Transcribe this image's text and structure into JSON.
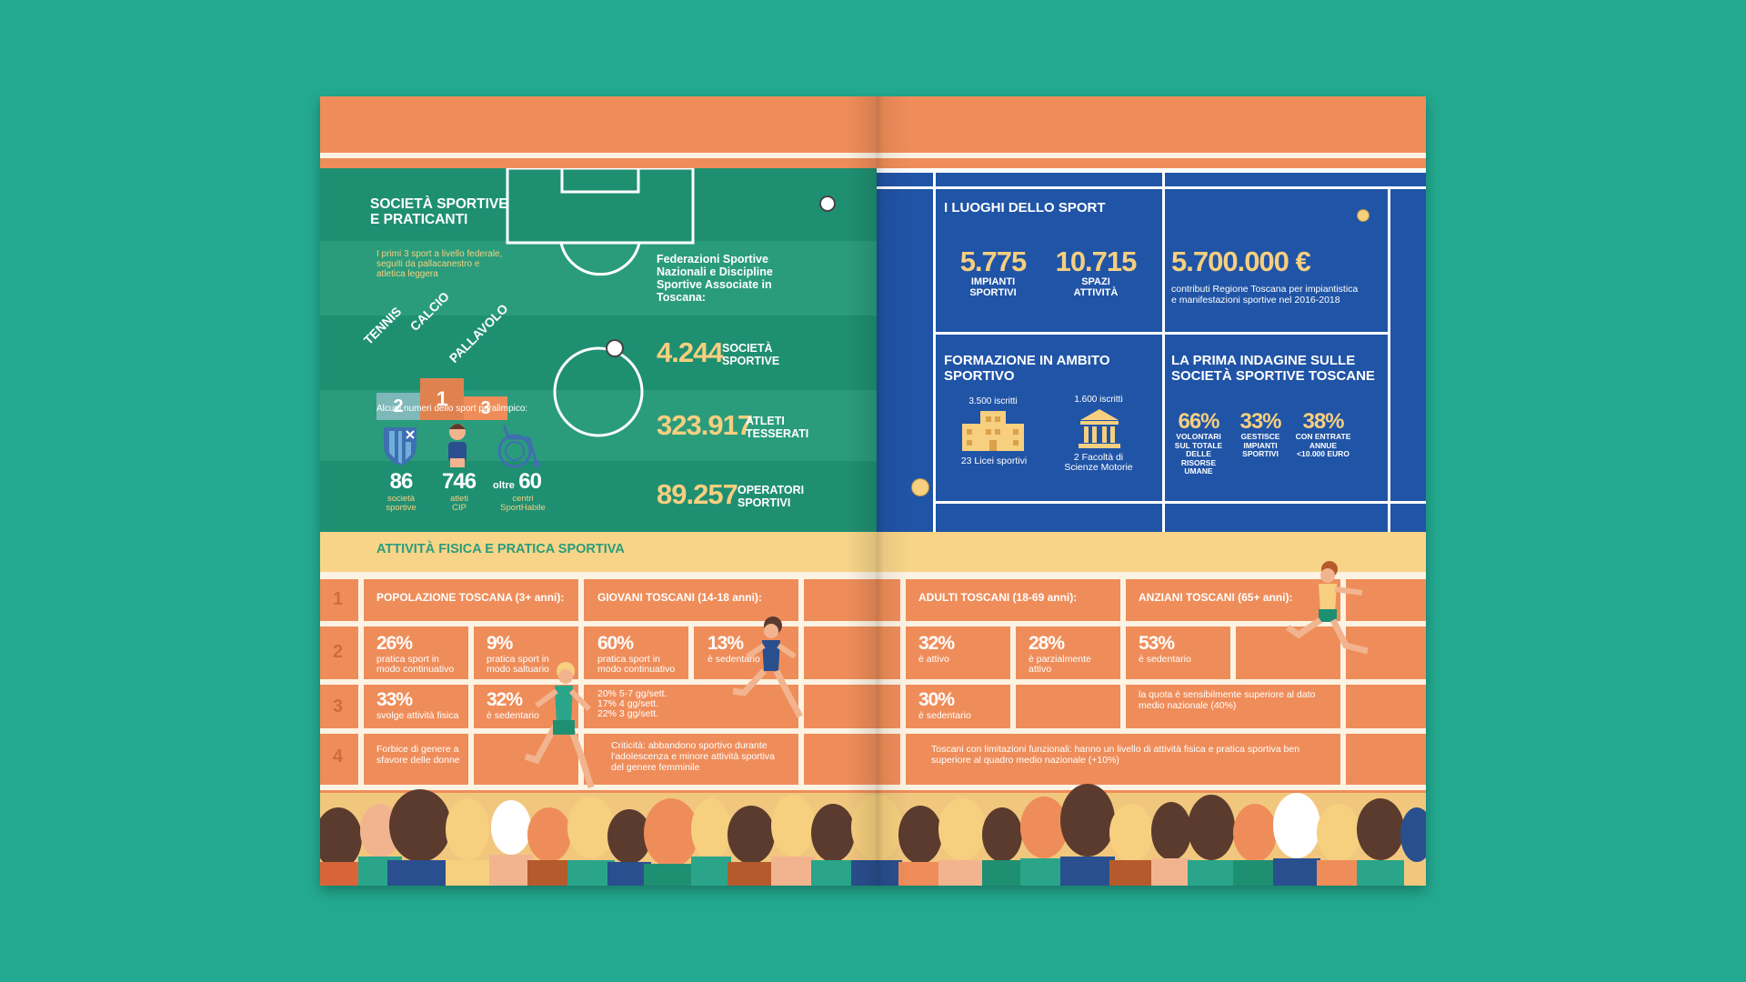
{
  "left": {
    "title": "SOCIETÀ SPORTIVE\nE PRATICANTI",
    "top3_note": "I primi 3 sport a livello federale,\nseguiti da pallacanestro e\natletica leggera",
    "podium": [
      {
        "rank": "2",
        "sport": "TENNIS"
      },
      {
        "rank": "1",
        "sport": "CALCIO"
      },
      {
        "rank": "3",
        "sport": "PALLAVOLO"
      }
    ],
    "federations_label": "Federazioni Sportive\nNazionali e Discipline\nSportive Associate in\nToscana:",
    "stats": [
      {
        "value": "4.244",
        "label": "SOCIETÀ\nSPORTIVE"
      },
      {
        "value": "323.917",
        "label": "ATLETI\nTESSERATI"
      },
      {
        "value": "89.257",
        "label": "OPERATORI\nSPORTIVI"
      }
    ],
    "paralympic_label": "Alcuni numeri dello sport paralimpico:",
    "paralympic": [
      {
        "prefix": "",
        "value": "86",
        "label": "società\nsportive",
        "icon": "shield-icon"
      },
      {
        "prefix": "",
        "value": "746",
        "label": "atleti\nCIP",
        "icon": "athlete-icon"
      },
      {
        "prefix": "oltre",
        "value": "60",
        "label": "centri\nSportHabile",
        "icon": "wheelchair-icon"
      }
    ]
  },
  "right": {
    "places_title": "I LUOGHI DELLO SPORT",
    "places": [
      {
        "value": "5.775",
        "label": "IMPIANTI\nSPORTIVI"
      },
      {
        "value": "10.715",
        "label": "SPAZI\nATTIVITÀ"
      }
    ],
    "contrib_value": "5.700.000 €",
    "contrib_label": "contributi Regione Toscana per impiantistica\ne manifestazioni sportive nel 2016-2018",
    "training_title": "FORMAZIONE IN AMBITO\nSPORTIVO",
    "training": [
      {
        "top": "3.500 iscritti",
        "bottom": "23 Licei sportivi",
        "icon": "school-building-icon"
      },
      {
        "top": "1.600 iscritti",
        "bottom": "2 Facoltà di\nScienze Motorie",
        "icon": "university-icon"
      }
    ],
    "survey_title": "LA PRIMA INDAGINE SULLE\nSOCIETÀ SPORTIVE TOSCANE",
    "survey": [
      {
        "value": "66%",
        "label": "VOLONTARI\nSUL TOTALE\nDELLE RISORSE\nUMANE"
      },
      {
        "value": "33%",
        "label": "GESTISCE\nIMPIANTI\nSPORTIVI"
      },
      {
        "value": "38%",
        "label": "CON ENTRATE\nANNUE\n<10.000 EURO"
      }
    ]
  },
  "activity": {
    "title": "ATTIVITÀ FISICA E PRATICA SPORTIVA",
    "row_numbers": [
      "1",
      "2",
      "3",
      "4"
    ],
    "headers": {
      "pop": "POPOLAZIONE TOSCANA (3+ anni):",
      "young": "GIOVANI TOSCANI (14-18 anni):",
      "adults": "ADULTI TOSCANI (18-69 anni):",
      "elderly": "ANZIANI TOSCANI (65+ anni):"
    },
    "pop": [
      {
        "value": "26%",
        "label": "pratica sport in\nmodo continuativo"
      },
      {
        "value": "9%",
        "label": "pratica sport in\nmodo saltuario"
      },
      {
        "value": "33%",
        "label": "svolge attività fisica"
      },
      {
        "value": "32%",
        "label": "è sedentario"
      }
    ],
    "pop_note": "Forbice di genere a\nsfavore delle donne",
    "young": [
      {
        "value": "60%",
        "label": "pratica sport in\nmodo continuativo"
      },
      {
        "value": "13%",
        "label": "è sedentario"
      }
    ],
    "young_freq": "20% 5-7 gg/sett.\n17% 4 gg/sett.\n22% 3 gg/sett.",
    "young_note": "Criticità: abbandono sportivo durante\nl'adolescenza e minore attività sportiva\ndel genere femminile",
    "adults": [
      {
        "value": "32%",
        "label": "è attivo"
      },
      {
        "value": "28%",
        "label": "è parzialmente\nattivo"
      },
      {
        "value": "30%",
        "label": "è sedentario"
      }
    ],
    "elderly": [
      {
        "value": "53%",
        "label": "è sedentario"
      }
    ],
    "elderly_note": "la quota è sensibilmente superiore al dato\nmedio nazionale (40%)",
    "limitations_note": "Toscani con limitazioni funzionali: hanno un livello di attività fisica e pratica sportiva ben\nsuperiore al quadro medio nazionale (+10%)"
  },
  "colors": {
    "background": "#23a98f",
    "orange": "#ef8d5a",
    "green_field": "#1f8f72",
    "blue_court": "#2054a6",
    "yellow": "#f6cf7f",
    "cream": "#f7d488"
  }
}
